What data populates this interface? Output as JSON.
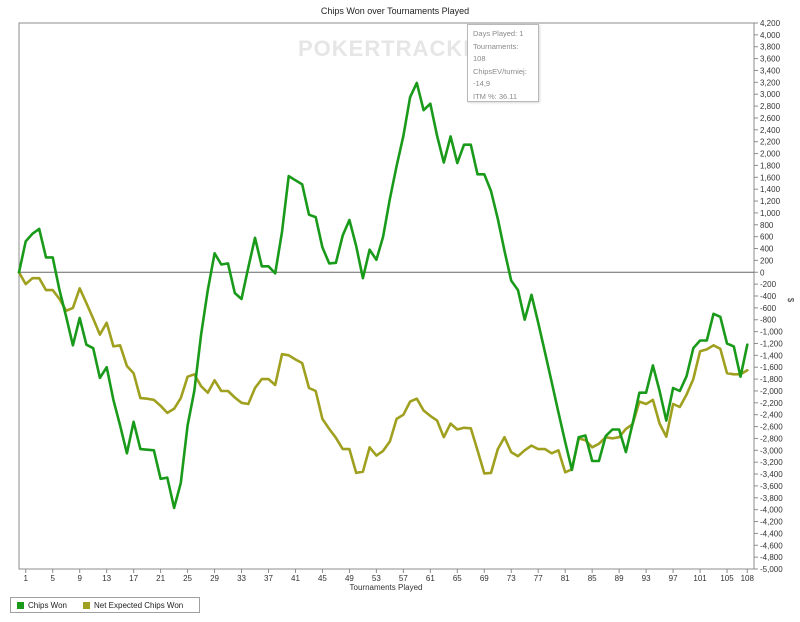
{
  "watermark": "POKERTRACKER",
  "tooltip": {
    "days_played": "Days Played: 1",
    "tournaments": "Tournaments: 108",
    "chipsev": "ChipsEV/turniej: -14,9",
    "itm": "ITM %: 36.11"
  },
  "legend": {
    "chips_won": "Chips Won",
    "net_expected": "Net Expected Chips Won"
  },
  "colors": {
    "chips_won": "#1a9a1a",
    "net_expected": "#a0a020",
    "plot_border": "#8c8c8c",
    "zero_line": "#666666"
  },
  "chart_data": {
    "type": "line",
    "title": "Chips Won over Tournaments Played",
    "xlabel": "Tournaments Played",
    "ylabel": "$",
    "xlim": [
      0,
      109
    ],
    "ylim": [
      -5000,
      4200
    ],
    "y_tick_step": 200,
    "x_ticks": [
      1,
      5,
      9,
      13,
      17,
      21,
      25,
      29,
      33,
      37,
      41,
      45,
      49,
      53,
      57,
      61,
      65,
      69,
      73,
      77,
      81,
      85,
      89,
      93,
      97,
      101,
      105,
      108
    ],
    "legend_position": "bottom-left",
    "grid": false,
    "series": [
      {
        "name": "Chips Won",
        "x": [
          0,
          1,
          2,
          3,
          4,
          5,
          6,
          7,
          8,
          9,
          10,
          11,
          12,
          13,
          14,
          15,
          16,
          17,
          18,
          19,
          20,
          21,
          22,
          23,
          24,
          25,
          26,
          27,
          28,
          29,
          30,
          31,
          32,
          33,
          34,
          35,
          36,
          37,
          38,
          39,
          40,
          41,
          42,
          43,
          44,
          45,
          46,
          47,
          48,
          49,
          50,
          51,
          52,
          53,
          54,
          55,
          56,
          57,
          58,
          59,
          60,
          61,
          62,
          63,
          64,
          65,
          66,
          67,
          68,
          69,
          70,
          71,
          72,
          73,
          74,
          75,
          76,
          77,
          78,
          79,
          80,
          81,
          82,
          83,
          84,
          85,
          86,
          87,
          88,
          89,
          90,
          91,
          92,
          93,
          94,
          95,
          96,
          97,
          98,
          99,
          100,
          101,
          102,
          103,
          104,
          105,
          106,
          107,
          108
        ],
        "y": [
          0,
          520,
          650,
          730,
          250,
          250,
          -300,
          -750,
          -1230,
          -770,
          -1220,
          -1280,
          -1780,
          -1600,
          -2150,
          -2580,
          -3050,
          -2520,
          -2980,
          -2990,
          -3000,
          -3480,
          -3460,
          -3970,
          -3550,
          -2580,
          -2000,
          -1050,
          -300,
          320,
          130,
          150,
          -350,
          -450,
          80,
          580,
          100,
          100,
          -20,
          680,
          1620,
          1550,
          1480,
          970,
          930,
          420,
          150,
          160,
          620,
          880,
          440,
          -100,
          380,
          210,
          600,
          1240,
          1790,
          2300,
          2950,
          3190,
          2730,
          2840,
          2300,
          1850,
          2290,
          1840,
          2150,
          2150,
          1650,
          1650,
          1370,
          900,
          360,
          -140,
          -300,
          -800,
          -380,
          -850,
          -1350,
          -1850,
          -2360,
          -2860,
          -3330,
          -2780,
          -2750,
          -3180,
          -3180,
          -2760,
          -2650,
          -2650,
          -3030,
          -2550,
          -2030,
          -2030,
          -1570,
          -2000,
          -2500,
          -1950,
          -2000,
          -1750,
          -1280,
          -1150,
          -1150,
          -700,
          -750,
          -1200,
          -1250,
          -1760,
          -1220
        ]
      },
      {
        "name": "Net Expected Chips Won",
        "x": [
          0,
          1,
          2,
          3,
          4,
          5,
          6,
          7,
          8,
          9,
          10,
          11,
          12,
          13,
          14,
          15,
          16,
          17,
          18,
          19,
          20,
          21,
          22,
          23,
          24,
          25,
          26,
          27,
          28,
          29,
          30,
          31,
          32,
          33,
          34,
          35,
          36,
          37,
          38,
          39,
          40,
          41,
          42,
          43,
          44,
          45,
          46,
          47,
          48,
          49,
          50,
          51,
          52,
          53,
          54,
          55,
          56,
          57,
          58,
          59,
          60,
          61,
          62,
          63,
          64,
          65,
          66,
          67,
          68,
          69,
          70,
          71,
          72,
          73,
          74,
          75,
          76,
          77,
          78,
          79,
          80,
          81,
          82,
          83,
          84,
          85,
          86,
          87,
          88,
          89,
          90,
          91,
          92,
          93,
          94,
          95,
          96,
          97,
          98,
          99,
          100,
          101,
          102,
          103,
          104,
          105,
          106,
          107,
          108
        ],
        "y": [
          0,
          -200,
          -100,
          -100,
          -300,
          -300,
          -450,
          -650,
          -600,
          -270,
          -520,
          -780,
          -1050,
          -850,
          -1250,
          -1230,
          -1580,
          -1700,
          -2120,
          -2130,
          -2150,
          -2250,
          -2370,
          -2300,
          -2120,
          -1760,
          -1720,
          -1920,
          -2030,
          -1820,
          -2000,
          -2000,
          -2110,
          -2200,
          -2220,
          -1950,
          -1800,
          -1800,
          -1900,
          -1380,
          -1400,
          -1470,
          -1530,
          -1950,
          -2000,
          -2470,
          -2640,
          -2790,
          -2980,
          -2980,
          -3380,
          -3360,
          -2950,
          -3090,
          -3010,
          -2850,
          -2470,
          -2400,
          -2180,
          -2130,
          -2330,
          -2420,
          -2500,
          -2780,
          -2550,
          -2650,
          -2620,
          -2630,
          -3000,
          -3390,
          -3380,
          -2980,
          -2780,
          -3030,
          -3100,
          -3000,
          -2920,
          -2980,
          -2980,
          -3050,
          -3000,
          -3370,
          -3320,
          -2800,
          -2830,
          -2950,
          -2890,
          -2780,
          -2800,
          -2780,
          -2640,
          -2560,
          -2180,
          -2220,
          -2150,
          -2550,
          -2770,
          -2220,
          -2270,
          -2060,
          -1800,
          -1330,
          -1300,
          -1230,
          -1290,
          -1700,
          -1720,
          -1720,
          -1650
        ]
      }
    ]
  }
}
